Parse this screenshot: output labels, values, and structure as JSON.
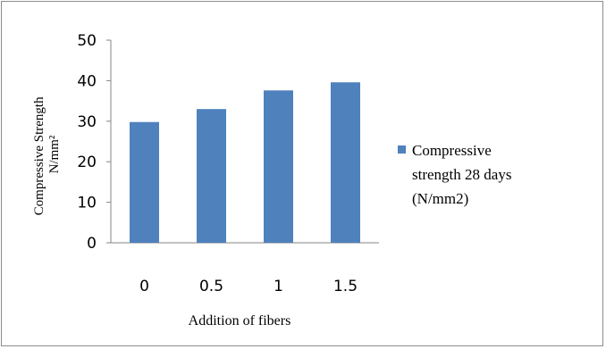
{
  "chart_data": {
    "type": "bar",
    "categories": [
      "0",
      "0.5",
      "1",
      "1.5"
    ],
    "series": [
      {
        "name": "Compressive strength  28 days (N/mm2)",
        "values": [
          29.8,
          33.0,
          37.6,
          39.6
        ]
      }
    ],
    "xlabel": "Addition of fibers",
    "ylabel": "Compressive Strength N/mm²",
    "ylabel_lines": [
      "Compressive Strength",
      "N/mm²"
    ],
    "ylim": [
      0,
      50
    ],
    "yticks": [
      "0",
      "10",
      "20",
      "30",
      "40",
      "50"
    ],
    "grid": false,
    "legend_position": "right",
    "legend_lines": [
      "Compressive",
      "strength  28 days",
      "(N/mm2)"
    ],
    "bar_color": "#4f81bd"
  }
}
